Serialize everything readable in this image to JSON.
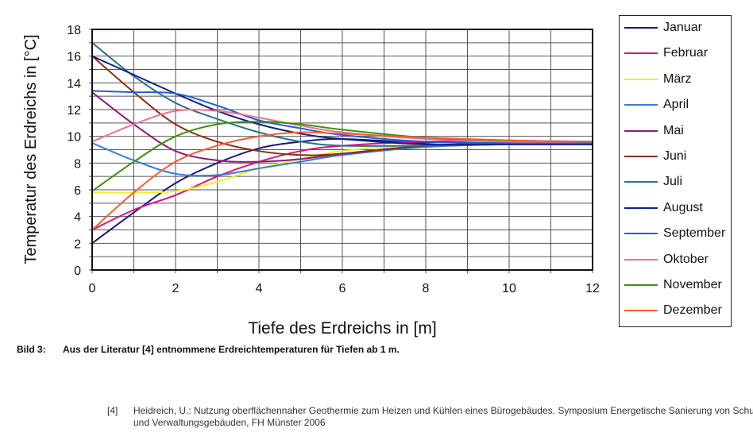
{
  "chart_data": {
    "type": "line",
    "xlabel": "Tiefe des Erdreichs in [m]",
    "ylabel": "Temperatur des Erdreichs in [°C]",
    "xlim": [
      0,
      12
    ],
    "ylim": [
      0,
      18
    ],
    "xticks": [
      0,
      2,
      4,
      6,
      8,
      10,
      12
    ],
    "yticks": [
      0,
      2,
      4,
      6,
      8,
      10,
      12,
      14,
      16,
      18
    ],
    "grid": true,
    "legend_placement": "right",
    "x": [
      0,
      1,
      2,
      3,
      4,
      5,
      6,
      8,
      10,
      12
    ],
    "series": [
      {
        "name": "Januar",
        "color": "#1a1a7a",
        "values": [
          2,
          4.3,
          6.5,
          8.0,
          9.1,
          9.6,
          9.8,
          9.5,
          9.4,
          9.4
        ]
      },
      {
        "name": "Februar",
        "color": "#e0107a",
        "values": [
          3,
          4.5,
          5.6,
          7.0,
          8.1,
          8.9,
          9.3,
          9.6,
          9.6,
          9.5
        ]
      },
      {
        "name": "März",
        "color": "#f0f020",
        "values": [
          5.8,
          5.8,
          5.9,
          6.6,
          7.6,
          8.3,
          8.9,
          9.4,
          9.6,
          9.6
        ]
      },
      {
        "name": "April",
        "color": "#3a7ad8",
        "values": [
          9.5,
          8.2,
          7.2,
          7.1,
          7.6,
          8.1,
          8.6,
          9.2,
          9.4,
          9.4
        ]
      },
      {
        "name": "Mai",
        "color": "#8a1a7a",
        "values": [
          13.3,
          10.9,
          8.9,
          8.2,
          8.1,
          8.3,
          8.7,
          9.3,
          9.4,
          9.4
        ]
      },
      {
        "name": "Juni",
        "color": "#8a3010",
        "values": [
          16,
          13.3,
          10.9,
          9.6,
          8.9,
          8.6,
          8.7,
          9.3,
          9.5,
          9.5
        ]
      },
      {
        "name": "Juli",
        "color": "#2a7090",
        "values": [
          17,
          14.5,
          12.5,
          11.3,
          10.3,
          9.6,
          9.3,
          9.3,
          9.4,
          9.4
        ]
      },
      {
        "name": "August",
        "color": "#10208a",
        "values": [
          16,
          14.6,
          13.2,
          11.9,
          10.9,
          10.2,
          9.8,
          9.4,
          9.4,
          9.4
        ]
      },
      {
        "name": "September",
        "color": "#2060d0",
        "values": [
          13.4,
          13.3,
          13.2,
          12.3,
          11.2,
          10.6,
          10.1,
          9.6,
          9.5,
          9.5
        ]
      },
      {
        "name": "Oktober",
        "color": "#f07090",
        "values": [
          9.6,
          10.9,
          11.9,
          11.9,
          11.4,
          10.8,
          10.3,
          9.8,
          9.6,
          9.6
        ]
      },
      {
        "name": "November",
        "color": "#3a9010",
        "values": [
          5.9,
          8.1,
          10.0,
          10.9,
          11.1,
          10.9,
          10.5,
          9.9,
          9.7,
          9.6
        ]
      },
      {
        "name": "Dezember",
        "color": "#f06030",
        "values": [
          3,
          5.8,
          8.1,
          9.3,
          10.0,
          10.3,
          10.2,
          9.9,
          9.7,
          9.6
        ]
      }
    ]
  },
  "caption": {
    "number": "Bild 3:",
    "text": "Aus der Literatur [4] entnommene Erdreichtemperaturen für Tiefen ab 1 m."
  },
  "reference": {
    "number": "[4]",
    "text": "Heidreich, U.: Nutzung oberflächennaher Geothermie zum Heizen und Kühlen eines Bürogebäudes. Symposium Energetische Sanierung von Schul- und Verwaltungsgebäuden, FH Münster 2006"
  }
}
